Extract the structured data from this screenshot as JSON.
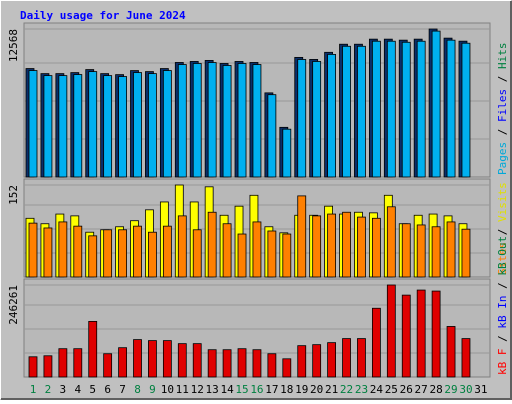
{
  "chart_data": [
    {
      "type": "bar",
      "title": "Daily usage for June 2024",
      "ylim": [
        0,
        12568
      ],
      "yticks": [
        12568
      ],
      "legend": [
        {
          "name": "Pages",
          "color": "#00a8d8"
        },
        {
          "name": "Files",
          "color": "#0000ff"
        },
        {
          "name": "Hits",
          "color": "#008040"
        }
      ],
      "legend_separator": "/",
      "series": [
        {
          "color": "#0a2f6a",
          "values": [
            9210,
            8780,
            8780,
            8866,
            9124,
            8780,
            8694,
            9038,
            8952,
            9210,
            9727,
            9813,
            9899,
            9641,
            9813,
            9727,
            7145,
            4218,
            10157,
            9985,
            10588,
            11276,
            11276,
            11707,
            11707,
            11621,
            11707,
            12568,
            11793,
            11535,
            null
          ]
        },
        {
          "color": "#00b0f0",
          "values": [
            9040,
            8610,
            8610,
            8700,
            8950,
            8610,
            8530,
            8870,
            8780,
            9040,
            9550,
            9640,
            9720,
            9470,
            9640,
            9550,
            6990,
            4060,
            9980,
            9810,
            10410,
            11100,
            11100,
            11530,
            11530,
            11440,
            11530,
            12390,
            11620,
            11360,
            null
          ]
        }
      ]
    },
    {
      "type": "bar",
      "ylim": [
        0,
        152
      ],
      "yticks": [
        152
      ],
      "legend": [
        {
          "name": "Sites",
          "color": "#ff8000"
        },
        {
          "name": "Visits",
          "color": "#e0e000"
        }
      ],
      "legend_separator": "/",
      "series": [
        {
          "color": "#ffff00",
          "values": [
            97,
            88,
            104,
            101,
            74,
            78,
            83,
            93,
            111,
            124,
            152,
            124,
            149,
            102,
            117,
            135,
            83,
            73,
            102,
            102,
            117,
            104,
            107,
            106,
            135,
            88,
            102,
            104,
            101,
            88,
            null
          ]
        },
        {
          "color": "#ff8000",
          "values": [
            89,
            81,
            91,
            84,
            68,
            78,
            78,
            84,
            74,
            84,
            101,
            78,
            107,
            88,
            71,
            91,
            76,
            71,
            134,
            101,
            104,
            107,
            99,
            97,
            116,
            88,
            86,
            83,
            91,
            79,
            null
          ]
        }
      ]
    },
    {
      "type": "bar",
      "ylim": [
        0,
        246261
      ],
      "yticks": [
        246261
      ],
      "legend": [
        {
          "name": "kB F",
          "color": "#ff0000"
        },
        {
          "name": "kB In",
          "color": "#0000ff"
        },
        {
          "name": "kB Out",
          "color": "#008040"
        }
      ],
      "legend_separator": "/",
      "categories": [
        "1",
        "2",
        "3",
        "4",
        "5",
        "6",
        "7",
        "8",
        "9",
        "10",
        "11",
        "12",
        "13",
        "14",
        "15",
        "16",
        "17",
        "18",
        "19",
        "20",
        "21",
        "22",
        "23",
        "24",
        "25",
        "26",
        "27",
        "28",
        "29",
        "30",
        "31"
      ],
      "weekend_days": [
        "1",
        "2",
        "8",
        "9",
        "15",
        "16",
        "22",
        "23",
        "29",
        "30"
      ],
      "weekend_color": "#008040",
      "series": [
        {
          "color": "#e00000",
          "values": [
            54120,
            56830,
            75770,
            75770,
            148830,
            62240,
            78470,
            100120,
            97420,
            97420,
            89300,
            89300,
            73060,
            73060,
            75770,
            73060,
            62240,
            48710,
            83890,
            86590,
            92000,
            102830,
            102830,
            184010,
            246261,
            219190,
            232720,
            230020,
            135300,
            102830,
            null
          ]
        }
      ]
    }
  ]
}
